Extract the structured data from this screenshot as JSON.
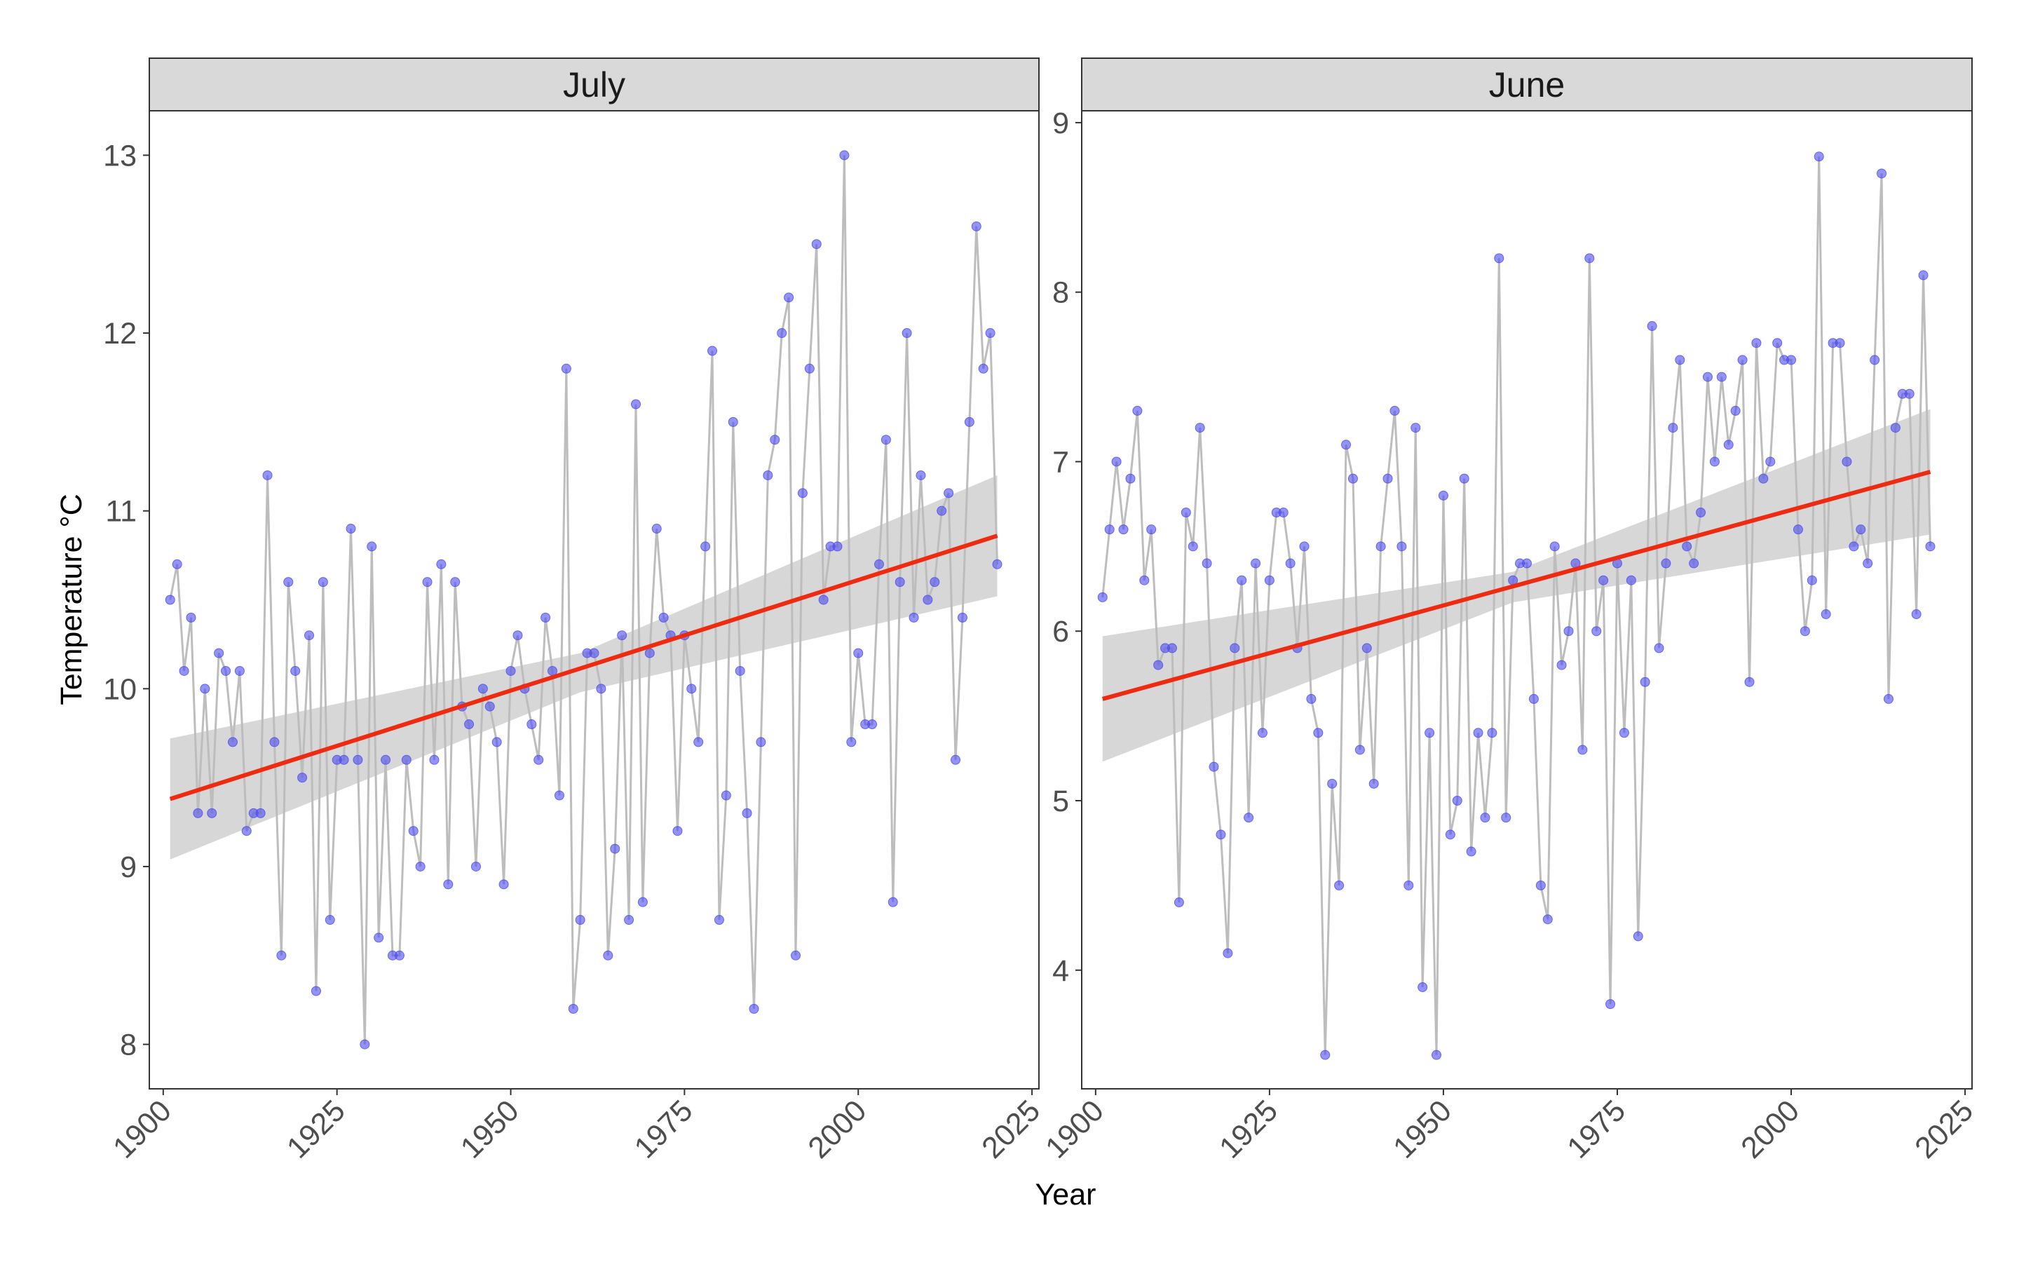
{
  "chart_data": {
    "type": "line",
    "xlabel": "Year",
    "ylabel": "Temperature °C",
    "colors": {
      "points": "#4b4bf0",
      "line": "#bdbdbd",
      "trend": "#ee2a11",
      "ribbon": "#d0d0d0"
    },
    "panels": [
      {
        "title": "July",
        "xlim": [
          1898,
          2026
        ],
        "ylim": [
          7.75,
          13.25
        ],
        "xticks": [
          "1900",
          "1925",
          "1950",
          "1975",
          "2000",
          "2025"
        ],
        "yticks": [
          "8",
          "9",
          "10",
          "11",
          "12",
          "13"
        ],
        "x_start": 1901,
        "values": [
          10.5,
          10.7,
          10.1,
          10.4,
          9.3,
          10.0,
          9.3,
          10.2,
          10.1,
          9.7,
          10.1,
          9.2,
          9.3,
          9.3,
          11.2,
          9.7,
          8.5,
          10.6,
          10.1,
          9.5,
          10.3,
          8.3,
          10.6,
          8.7,
          9.6,
          9.6,
          10.9,
          9.6,
          8.0,
          10.8,
          8.6,
          9.6,
          8.5,
          8.5,
          9.6,
          9.2,
          9.0,
          10.6,
          9.6,
          10.7,
          8.9,
          10.6,
          9.9,
          9.8,
          9.0,
          10.0,
          9.9,
          9.7,
          8.9,
          10.1,
          10.3,
          10.0,
          9.8,
          9.6,
          10.4,
          10.1,
          9.4,
          11.8,
          8.2,
          8.7,
          10.2,
          10.2,
          10.0,
          8.5,
          9.1,
          10.3,
          8.7,
          11.6,
          8.8,
          10.2,
          10.9,
          10.4,
          10.3,
          9.2,
          10.3,
          10.0,
          9.7,
          10.8,
          11.9,
          8.7,
          9.4,
          11.5,
          10.1,
          9.3,
          8.2,
          9.7,
          11.2,
          11.4,
          12.0,
          12.2,
          8.5,
          11.1,
          11.8,
          12.5,
          10.5,
          10.8,
          10.8,
          13.0,
          9.7,
          10.2,
          9.8,
          9.8,
          10.7,
          11.4,
          8.8,
          10.6,
          12.0,
          10.4,
          11.2,
          10.5,
          10.6,
          11.0,
          11.1,
          9.6,
          10.4,
          11.5,
          12.6,
          11.8,
          12.0,
          10.7
        ],
        "trend": {
          "x": [
            1901,
            2020
          ],
          "y": [
            9.38,
            10.86
          ]
        },
        "band": {
          "x": [
            1901,
            1960,
            2020
          ],
          "lower": [
            9.04,
            9.98,
            10.52
          ],
          "upper": [
            9.72,
            10.2,
            11.2
          ]
        }
      },
      {
        "title": "June",
        "xlim": [
          1898,
          2026
        ],
        "ylim": [
          3.3,
          9.07
        ],
        "xticks": [
          "1900",
          "1925",
          "1950",
          "1975",
          "2000",
          "2025"
        ],
        "yticks": [
          "4",
          "5",
          "6",
          "7",
          "8",
          "9"
        ],
        "x_start": 1901,
        "values": [
          6.2,
          6.6,
          7.0,
          6.6,
          6.9,
          7.3,
          6.3,
          6.6,
          5.8,
          5.9,
          5.9,
          4.4,
          6.7,
          6.5,
          7.2,
          6.4,
          5.2,
          4.8,
          4.1,
          5.9,
          6.3,
          4.9,
          6.4,
          5.4,
          6.3,
          6.7,
          6.7,
          6.4,
          5.9,
          6.5,
          5.6,
          5.4,
          3.5,
          5.1,
          4.5,
          7.1,
          6.9,
          5.3,
          5.9,
          5.1,
          6.5,
          6.9,
          7.3,
          6.5,
          4.5,
          7.2,
          3.9,
          5.4,
          3.5,
          6.8,
          4.8,
          5.0,
          6.9,
          4.7,
          5.4,
          4.9,
          5.4,
          8.2,
          4.9,
          6.3,
          6.4,
          6.4,
          5.6,
          4.5,
          4.3,
          6.5,
          5.8,
          6.0,
          6.4,
          5.3,
          8.2,
          6.0,
          6.3,
          3.8,
          6.4,
          5.4,
          6.3,
          4.2,
          5.7,
          7.8,
          5.9,
          6.4,
          7.2,
          7.6,
          6.5,
          6.4,
          6.7,
          7.5,
          7.0,
          7.5,
          7.1,
          7.3,
          7.6,
          5.7,
          7.7,
          6.9,
          7.0,
          7.7,
          7.6,
          7.6,
          6.6,
          6.0,
          6.3,
          8.8,
          6.1,
          7.7,
          7.7,
          7.0,
          6.5,
          6.6,
          6.4,
          7.6,
          8.7,
          5.6,
          7.2,
          7.4,
          7.4,
          6.1,
          8.1,
          6.5
        ],
        "trend": {
          "x": [
            1901,
            2020
          ],
          "y": [
            5.6,
            6.94
          ]
        },
        "band": {
          "x": [
            1901,
            1960,
            2020
          ],
          "lower": [
            5.23,
            6.17,
            6.57
          ],
          "upper": [
            5.97,
            6.35,
            7.31
          ]
        }
      }
    ]
  }
}
